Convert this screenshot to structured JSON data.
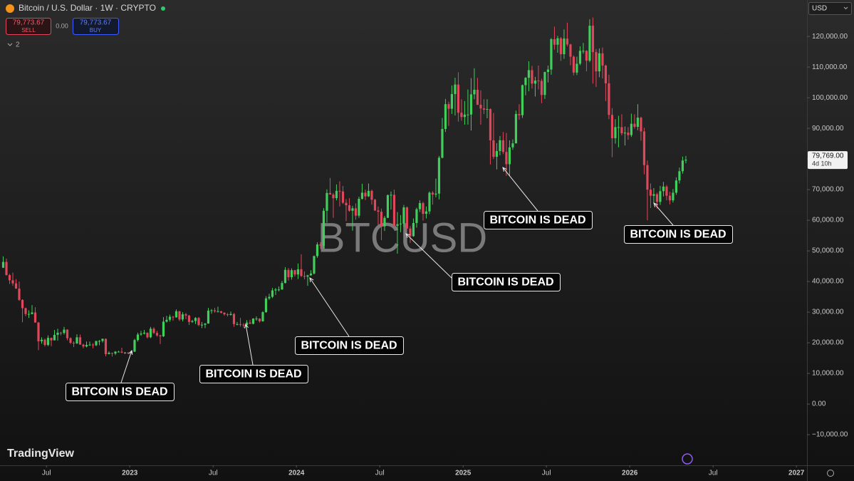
{
  "header": {
    "symbol": "Bitcoin / U.S. Dollar · 1W · CRYPTO",
    "sell_price": "79,773.67",
    "sell_label": "SELL",
    "spread": "0.00",
    "buy_price": "79,773.67",
    "buy_label": "BUY",
    "indicators_count": "2",
    "currency": "USD"
  },
  "watermark": "BTCUSD",
  "brand": "TradingView",
  "chart_data": {
    "type": "candlestick",
    "up_color": "#3fcf5a",
    "down_color": "#e0475a",
    "grid": false,
    "xlim": [
      -1,
      250.8
    ],
    "ylim": [
      -20000,
      131900
    ],
    "xticks": [
      {
        "value": 13.5,
        "label": "Jul"
      },
      {
        "value": 39.5,
        "label": "2023"
      },
      {
        "value": 65.5,
        "label": "Jul"
      },
      {
        "value": 91.5,
        "label": "2024"
      },
      {
        "value": 117.5,
        "label": "Jul"
      },
      {
        "value": 143.5,
        "label": "2025"
      },
      {
        "value": 169.5,
        "label": "Jul"
      },
      {
        "value": 195.5,
        "label": "2026"
      },
      {
        "value": 221.5,
        "label": "Jul"
      },
      {
        "value": 247.5,
        "label": "2027"
      }
    ],
    "yticks": [
      {
        "value": 120000,
        "label": "120,000.00"
      },
      {
        "value": 110000,
        "label": "110,000.00"
      },
      {
        "value": 100000,
        "label": "100,000.00"
      },
      {
        "value": 90000,
        "label": "90,000.00"
      },
      {
        "value": 80000,
        "label": "80,000.00"
      },
      {
        "value": 70000,
        "label": "70,000.00"
      },
      {
        "value": 60000,
        "label": "60,000.00"
      },
      {
        "value": 50000,
        "label": "50,000.00"
      },
      {
        "value": 40000,
        "label": "40,000.00"
      },
      {
        "value": 30000,
        "label": "30,000.00"
      },
      {
        "value": 20000,
        "label": "20,000.00"
      },
      {
        "value": 10000,
        "label": "10,000.00"
      },
      {
        "value": 0,
        "label": "0.00"
      },
      {
        "value": -10000,
        "label": "−10,000.00"
      }
    ],
    "last_price": {
      "value": 79769,
      "label": "79,769.00"
    },
    "countdown": "4d 10h",
    "annotations": [
      "BITCOIN IS DEAD",
      "BITCOIN IS DEAD",
      "BITCOIN IS DEAD",
      "BITCOIN IS DEAD",
      "BITCOIN IS DEAD",
      "BITCOIN IS DEAD"
    ],
    "ohlc": [
      [
        44500,
        48200,
        44400,
        46400
      ],
      [
        46400,
        47500,
        42000,
        42100
      ],
      [
        42100,
        42500,
        39200,
        40400
      ],
      [
        40400,
        42900,
        38600,
        39400
      ],
      [
        39400,
        40800,
        37600,
        37700
      ],
      [
        37700,
        40000,
        33700,
        34000
      ],
      [
        34000,
        34200,
        26700,
        31300
      ],
      [
        31300,
        31500,
        28700,
        29400
      ],
      [
        29400,
        30600,
        28100,
        29400
      ],
      [
        29400,
        32300,
        29300,
        29900
      ],
      [
        29900,
        31600,
        26600,
        26600
      ],
      [
        26600,
        26800,
        17600,
        20500
      ],
      [
        20500,
        21800,
        19700,
        21000
      ],
      [
        21000,
        21400,
        18800,
        19300
      ],
      [
        19300,
        22400,
        18900,
        21600
      ],
      [
        21600,
        21700,
        18900,
        20800
      ],
      [
        20800,
        24200,
        20800,
        22600
      ],
      [
        22600,
        24600,
        20700,
        23300
      ],
      [
        23300,
        23600,
        22400,
        23200
      ],
      [
        23200,
        25200,
        22700,
        24300
      ],
      [
        24300,
        24400,
        20800,
        21500
      ],
      [
        21500,
        21800,
        19600,
        20000
      ],
      [
        20000,
        20500,
        18600,
        19800
      ],
      [
        19800,
        22800,
        19600,
        21800
      ],
      [
        21800,
        22700,
        19400,
        19400
      ],
      [
        19400,
        19700,
        18200,
        18800
      ],
      [
        18800,
        20400,
        18500,
        19300
      ],
      [
        19300,
        20400,
        19000,
        19400
      ],
      [
        19400,
        19900,
        18200,
        19200
      ],
      [
        19200,
        19700,
        18900,
        20600
      ],
      [
        20600,
        20900,
        19200,
        20600
      ],
      [
        20600,
        21400,
        20100,
        21300
      ],
      [
        21300,
        21400,
        15600,
        16300
      ],
      [
        16300,
        17200,
        16300,
        16700
      ],
      [
        16700,
        16800,
        15500,
        16500
      ],
      [
        16500,
        17300,
        16000,
        17100
      ],
      [
        17100,
        17400,
        16900,
        17100
      ],
      [
        17100,
        18400,
        16600,
        16800
      ],
      [
        16800,
        17000,
        16400,
        16800
      ],
      [
        16800,
        16900,
        16300,
        16600
      ],
      [
        16600,
        17300,
        16500,
        17100
      ],
      [
        17100,
        21300,
        17000,
        20900
      ],
      [
        20900,
        23300,
        20400,
        22700
      ],
      [
        22700,
        23900,
        22300,
        23000
      ],
      [
        23000,
        24200,
        22700,
        23300
      ],
      [
        23300,
        23400,
        21400,
        21800
      ],
      [
        21800,
        25200,
        21500,
        24600
      ],
      [
        24600,
        25100,
        22900,
        23200
      ],
      [
        23200,
        23900,
        22000,
        22400
      ],
      [
        22400,
        22600,
        19600,
        22100
      ],
      [
        22100,
        28400,
        21900,
        26900
      ],
      [
        26900,
        28800,
        26600,
        27500
      ],
      [
        27500,
        29200,
        26900,
        28500
      ],
      [
        28500,
        28800,
        27200,
        28300
      ],
      [
        28300,
        30900,
        28200,
        30300
      ],
      [
        30300,
        30400,
        27100,
        27600
      ],
      [
        27600,
        30000,
        27000,
        29300
      ],
      [
        29300,
        29800,
        27700,
        28900
      ],
      [
        28900,
        29100,
        25800,
        26800
      ],
      [
        26800,
        27500,
        26500,
        27100
      ],
      [
        27100,
        28400,
        26100,
        28100
      ],
      [
        28100,
        28400,
        25400,
        25800
      ],
      [
        25800,
        26800,
        24800,
        25900
      ],
      [
        25900,
        26400,
        24800,
        26300
      ],
      [
        26300,
        31400,
        26200,
        30500
      ],
      [
        30500,
        31000,
        29500,
        30600
      ],
      [
        30600,
        31400,
        29800,
        30300
      ],
      [
        30300,
        31800,
        29900,
        30300
      ],
      [
        30300,
        30400,
        29600,
        29800
      ],
      [
        29800,
        30000,
        28900,
        29300
      ],
      [
        29300,
        29700,
        28600,
        29100
      ],
      [
        29100,
        30200,
        28900,
        29400
      ],
      [
        29400,
        29700,
        25200,
        26100
      ],
      [
        26100,
        26800,
        25700,
        26100
      ],
      [
        26100,
        28100,
        25300,
        25900
      ],
      [
        25900,
        26400,
        24900,
        25800
      ],
      [
        25800,
        27400,
        25100,
        26600
      ],
      [
        26600,
        27500,
        26200,
        26200
      ],
      [
        26200,
        28000,
        26000,
        27900
      ],
      [
        27900,
        28600,
        27200,
        27900
      ],
      [
        27900,
        28000,
        26600,
        27000
      ],
      [
        27000,
        30300,
        26900,
        30000
      ],
      [
        30000,
        35200,
        29800,
        34500
      ],
      [
        34500,
        36000,
        34000,
        35000
      ],
      [
        35000,
        37900,
        34600,
        37100
      ],
      [
        37100,
        37900,
        35600,
        37400
      ],
      [
        37400,
        38400,
        36800,
        37400
      ],
      [
        37400,
        40200,
        37300,
        39500
      ],
      [
        39500,
        44700,
        39400,
        43800
      ],
      [
        43800,
        44400,
        40300,
        41400
      ],
      [
        41400,
        44300,
        40600,
        43700
      ],
      [
        43700,
        43800,
        41600,
        42300
      ],
      [
        42300,
        45900,
        40800,
        44000
      ],
      [
        44000,
        48900,
        41500,
        41800
      ],
      [
        41800,
        43300,
        40700,
        41600
      ],
      [
        41600,
        42200,
        38600,
        42000
      ],
      [
        42000,
        43700,
        41900,
        42600
      ],
      [
        42600,
        48500,
        42300,
        48300
      ],
      [
        48300,
        52800,
        47700,
        52100
      ],
      [
        52100,
        52900,
        50600,
        51700
      ],
      [
        51700,
        64000,
        50900,
        63100
      ],
      [
        63100,
        70100,
        59200,
        68900
      ],
      [
        68900,
        73800,
        68600,
        68400
      ],
      [
        68400,
        68900,
        60800,
        67200
      ],
      [
        67200,
        71700,
        66500,
        69600
      ],
      [
        69600,
        72700,
        64500,
        69400
      ],
      [
        69400,
        71200,
        65300,
        65700
      ],
      [
        65700,
        66900,
        59700,
        64900
      ],
      [
        64900,
        67200,
        62800,
        63100
      ],
      [
        63100,
        64700,
        56600,
        63900
      ],
      [
        63900,
        65500,
        60200,
        61500
      ],
      [
        61500,
        67700,
        60800,
        67000
      ],
      [
        67000,
        71900,
        66700,
        69000
      ],
      [
        69000,
        70000,
        66600,
        67800
      ],
      [
        67800,
        72000,
        67600,
        69600
      ],
      [
        69600,
        70000,
        65100,
        66700
      ],
      [
        66700,
        67000,
        63000,
        63200
      ],
      [
        63200,
        64500,
        58500,
        62800
      ],
      [
        62800,
        63800,
        53500,
        58000
      ],
      [
        58000,
        61400,
        56500,
        60800
      ],
      [
        60800,
        68400,
        60700,
        68200
      ],
      [
        68200,
        69400,
        63500,
        68300
      ],
      [
        68300,
        70000,
        57200,
        58200
      ],
      [
        58200,
        62700,
        49100,
        58700
      ],
      [
        58700,
        61700,
        56100,
        58900
      ],
      [
        58900,
        65000,
        57800,
        64200
      ],
      [
        64200,
        64500,
        57300,
        57300
      ],
      [
        57300,
        58100,
        52600,
        54800
      ],
      [
        54800,
        60600,
        54600,
        59100
      ],
      [
        59100,
        64100,
        57600,
        63600
      ],
      [
        63600,
        66500,
        62700,
        65600
      ],
      [
        65600,
        66100,
        59900,
        62100
      ],
      [
        62100,
        64500,
        60600,
        62900
      ],
      [
        62900,
        69400,
        62000,
        69000
      ],
      [
        69000,
        69500,
        65100,
        68400
      ],
      [
        68400,
        73600,
        67500,
        68700
      ],
      [
        68700,
        81000,
        66800,
        80400
      ],
      [
        80400,
        93400,
        80200,
        89800
      ],
      [
        89800,
        99600,
        88800,
        97900
      ],
      [
        97900,
        98700,
        90800,
        96400
      ],
      [
        96400,
        104000,
        94700,
        101200
      ],
      [
        101200,
        106500,
        94200,
        104300
      ],
      [
        104300,
        108300,
        92200,
        95100
      ],
      [
        95100,
        99500,
        92500,
        93700
      ],
      [
        93700,
        98900,
        91200,
        94500
      ],
      [
        94500,
        102700,
        91200,
        94500
      ],
      [
        94500,
        106400,
        89300,
        101100
      ],
      [
        101100,
        109600,
        99500,
        102600
      ],
      [
        102600,
        106500,
        97600,
        97700
      ],
      [
        97700,
        102400,
        91200,
        96500
      ],
      [
        96500,
        99500,
        94700,
        96100
      ],
      [
        96100,
        99500,
        93300,
        96300
      ],
      [
        96300,
        96500,
        78200,
        86100
      ],
      [
        86100,
        95000,
        80000,
        80700
      ],
      [
        80700,
        85200,
        76600,
        82600
      ],
      [
        82600,
        87500,
        81200,
        86100
      ],
      [
        86100,
        88800,
        81600,
        82300
      ],
      [
        82300,
        88500,
        74500,
        78300
      ],
      [
        78300,
        86100,
        74500,
        83800
      ],
      [
        83800,
        86400,
        83000,
        85100
      ],
      [
        85100,
        95800,
        85100,
        94700
      ],
      [
        94700,
        97900,
        92800,
        94300
      ],
      [
        94300,
        104300,
        93400,
        104100
      ],
      [
        104100,
        106700,
        100800,
        106500
      ],
      [
        106500,
        111900,
        102100,
        109000
      ],
      [
        109000,
        110400,
        103000,
        104600
      ],
      [
        104600,
        106800,
        100400,
        105600
      ],
      [
        105600,
        110500,
        102700,
        105500
      ],
      [
        105500,
        106200,
        98200,
        100900
      ],
      [
        100900,
        108500,
        99600,
        108400
      ],
      [
        108400,
        110500,
        105000,
        109200
      ],
      [
        109200,
        119500,
        107500,
        119100
      ],
      [
        119100,
        123200,
        115700,
        117300
      ],
      [
        117300,
        120200,
        114700,
        119400
      ],
      [
        119400,
        119800,
        112000,
        114200
      ],
      [
        114200,
        122300,
        112700,
        119300
      ],
      [
        119300,
        124500,
        116800,
        117400
      ],
      [
        117400,
        117600,
        110600,
        113400
      ],
      [
        113400,
        113800,
        107300,
        108200
      ],
      [
        108200,
        113400,
        107400,
        111100
      ],
      [
        111100,
        116800,
        110600,
        115300
      ],
      [
        115300,
        117900,
        114400,
        115300
      ],
      [
        115300,
        115500,
        108600,
        112100
      ],
      [
        112100,
        125600,
        111600,
        123500
      ],
      [
        123500,
        126200,
        104600,
        114900
      ],
      [
        114900,
        115900,
        103500,
        108600
      ],
      [
        108600,
        116100,
        106700,
        114500
      ],
      [
        114500,
        116400,
        106300,
        110500
      ],
      [
        110500,
        110800,
        98900,
        104700
      ],
      [
        104700,
        107500,
        93000,
        94400
      ],
      [
        94400,
        96600,
        80600,
        86800
      ],
      [
        86800,
        93000,
        85000,
        90400
      ],
      [
        90400,
        94100,
        83800,
        90400
      ],
      [
        90400,
        94600,
        87700,
        88400
      ],
      [
        88400,
        90600,
        84400,
        88600
      ],
      [
        88600,
        90400,
        86300,
        87800
      ],
      [
        87800,
        94800,
        87200,
        91500
      ],
      [
        91500,
        94600,
        89900,
        90500
      ],
      [
        90500,
        97900,
        89400,
        93500
      ],
      [
        93500,
        93800,
        86000,
        89000
      ],
      [
        89000,
        90200,
        75000,
        78000
      ],
      [
        78000,
        79500,
        60000,
        70000
      ],
      [
        70000,
        72000,
        64000,
        68000
      ],
      [
        68000,
        70500,
        65500,
        68500
      ],
      [
        68500,
        69000,
        63800,
        66000
      ],
      [
        66000,
        71200,
        65000,
        69500
      ],
      [
        69500,
        72500,
        67800,
        71000
      ],
      [
        71000,
        71500,
        66500,
        68000
      ],
      [
        68000,
        69300,
        65200,
        66500
      ],
      [
        66500,
        70200,
        65800,
        69000
      ],
      [
        69000,
        74000,
        68300,
        73000
      ],
      [
        73000,
        77200,
        72000,
        76000
      ],
      [
        76000,
        80800,
        75200,
        79500
      ],
      [
        79500,
        81000,
        78600,
        79769
      ]
    ]
  }
}
